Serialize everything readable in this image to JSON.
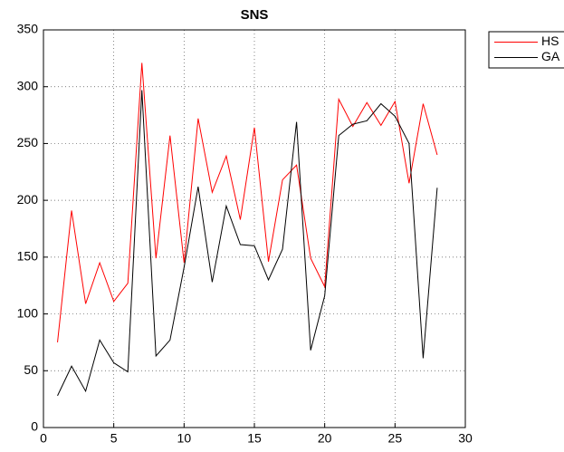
{
  "chart_data": {
    "type": "line",
    "title": "SNS",
    "x": [
      1,
      2,
      3,
      4,
      5,
      6,
      7,
      8,
      9,
      10,
      11,
      12,
      13,
      14,
      15,
      16,
      17,
      18,
      19,
      20,
      21,
      22,
      23,
      24,
      25,
      26,
      27,
      28
    ],
    "series": [
      {
        "name": "HS",
        "color": "#ff0000",
        "values": [
          75,
          191,
          109,
          145,
          111,
          127,
          321,
          149,
          257,
          145,
          272,
          207,
          239,
          183,
          264,
          146,
          218,
          231,
          149,
          124,
          289,
          265,
          286,
          266,
          287,
          215,
          285,
          240
        ]
      },
      {
        "name": "GA",
        "color": "#000000",
        "values": [
          28,
          54,
          32,
          77,
          57,
          49,
          297,
          63,
          77,
          141,
          212,
          128,
          195,
          161,
          160,
          130,
          157,
          269,
          68,
          116,
          257,
          267,
          270,
          285,
          274,
          250,
          61,
          211
        ]
      }
    ],
    "xlim": [
      0,
      30
    ],
    "xticks": [
      0,
      5,
      10,
      15,
      20,
      25,
      30
    ],
    "ylim": [
      0,
      350
    ],
    "yticks": [
      0,
      50,
      100,
      150,
      200,
      250,
      300,
      350
    ],
    "grid": true,
    "legend": "outside-right"
  }
}
